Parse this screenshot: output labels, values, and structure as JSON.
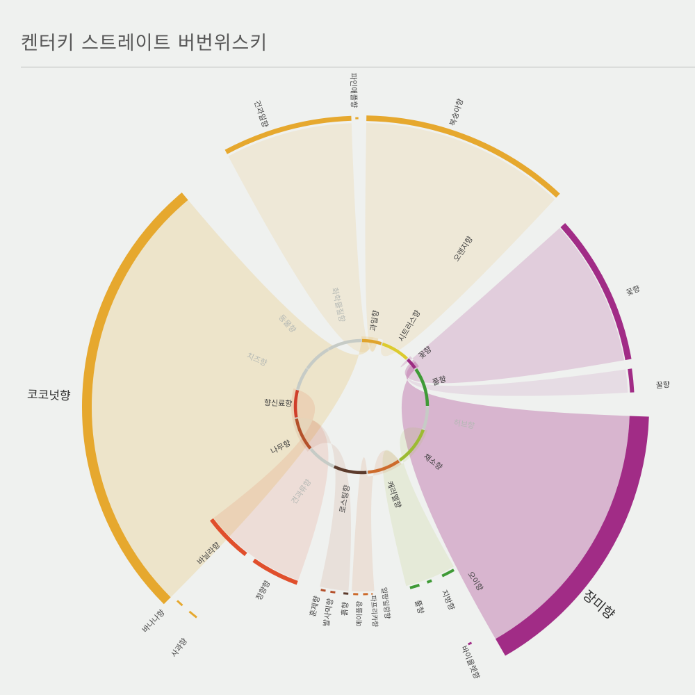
{
  "page": {
    "title": "켄터키 스트레이트 버번위스키"
  },
  "chart_data": {
    "type": "chord-wheel",
    "title": "켄터키 스트레이트 버번위스키",
    "inner_categories": [
      {
        "name": "과일향",
        "color": "#e0a42c",
        "muted": false
      },
      {
        "name": "시트러스향",
        "color": "#dccb2e",
        "muted": false
      },
      {
        "name": "꽃향",
        "color": "#9c2a82",
        "muted": false
      },
      {
        "name": "풀향",
        "color": "#3f9a36",
        "muted": false
      },
      {
        "name": "허브향",
        "color": "#c6cbc6",
        "muted": true
      },
      {
        "name": "채소향",
        "color": "#9cbb32",
        "muted": false
      },
      {
        "name": "캐러멜향",
        "color": "#cd6b2c",
        "muted": false
      },
      {
        "name": "로스팅향",
        "color": "#5c3b2c",
        "muted": false
      },
      {
        "name": "견과류향",
        "color": "#c6cbc6",
        "muted": true
      },
      {
        "name": "나무향",
        "color": "#b4502a",
        "muted": false
      },
      {
        "name": "향신료향",
        "color": "#cf3e2a",
        "muted": false
      },
      {
        "name": "치즈향",
        "color": "#c6cbc6",
        "muted": true
      },
      {
        "name": "동물향",
        "color": "#c6cbc6",
        "muted": true
      },
      {
        "name": "화학물질향",
        "color": "#c6cbc6",
        "muted": true
      }
    ],
    "outer_arcs": [
      {
        "name": "코코넛향",
        "group": "과일향",
        "color": "#e6a82e",
        "label_style": "major"
      },
      {
        "name": "바나나향",
        "group": "과일향",
        "color": "#e6a82e",
        "label_style": "minor"
      },
      {
        "name": "사과향",
        "group": "과일향",
        "color": "#e6a82e",
        "label_style": "minor"
      },
      {
        "name": "건과일향",
        "group": "과일향",
        "color": "#e6a82e",
        "label_style": "minor"
      },
      {
        "name": "파인애플향",
        "group": "과일향",
        "color": "#e6a82e",
        "label_style": "minor"
      },
      {
        "name": "복숭아향",
        "group": "과일향",
        "color": "#e6a82e",
        "label_style": "minor"
      },
      {
        "name": "오렌지향",
        "group": "시트러스향",
        "color": "#c6cbc6",
        "label_style": "minor"
      },
      {
        "name": "꽃향",
        "group": "꽃향",
        "color": "#a12c86",
        "label_style": "minor"
      },
      {
        "name": "꿀향",
        "group": "꽃향",
        "color": "#a12c86",
        "label_style": "minor"
      },
      {
        "name": "장미향",
        "group": "꽃향",
        "color": "#a12c86",
        "label_style": "major"
      },
      {
        "name": "바이올렛향",
        "group": "꽃향",
        "color": "#a12c86",
        "label_style": "minor"
      },
      {
        "name": "오이향",
        "group": "풀향",
        "color": "#3f9a36",
        "label_style": "minor"
      },
      {
        "name": "지방향",
        "group": "풀향",
        "color": "#3f9a36",
        "label_style": "minor"
      },
      {
        "name": "풀향",
        "group": "풀향",
        "color": "#3f9a36",
        "label_style": "minor"
      },
      {
        "name": "일랑일랑향",
        "group": "캐러멜향",
        "color": "#cd6b2c",
        "label_style": "minor"
      },
      {
        "name": "파프리카향",
        "group": "캐러멜향",
        "color": "#cd6b2c",
        "label_style": "minor"
      },
      {
        "name": "메이플향",
        "group": "캐러멜향",
        "color": "#cd6b2c",
        "label_style": "minor"
      },
      {
        "name": "흙향",
        "group": "로스팅향",
        "color": "#5c3b2c",
        "label_style": "minor"
      },
      {
        "name": "발사믹향",
        "group": "나무향",
        "color": "#b4502a",
        "label_style": "minor"
      },
      {
        "name": "훈제향",
        "group": "나무향",
        "color": "#b4502a",
        "label_style": "minor"
      },
      {
        "name": "정향향",
        "group": "향신료향",
        "color": "#e04f2c",
        "label_style": "minor"
      },
      {
        "name": "바닐라향",
        "group": "향신료향",
        "color": "#e04f2c",
        "label_style": "minor"
      }
    ]
  }
}
